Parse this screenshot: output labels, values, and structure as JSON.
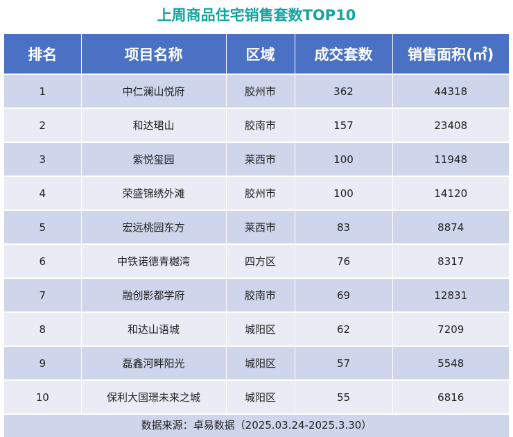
{
  "title": "上周商品住宅销售套数TOP10",
  "table": {
    "headers": [
      "排名",
      "项目名称",
      "区域",
      "成交套数",
      "销售面积(㎡)"
    ],
    "rows": [
      [
        "1",
        "中仁澜山悦府",
        "胶州市",
        "362",
        "44318"
      ],
      [
        "2",
        "和达珺山",
        "胶南市",
        "157",
        "23408"
      ],
      [
        "3",
        "紫悦玺园",
        "莱西市",
        "100",
        "11948"
      ],
      [
        "4",
        "荣盛锦绣外滩",
        "胶州市",
        "100",
        "14120"
      ],
      [
        "5",
        "宏远桃园东方",
        "莱西市",
        "83",
        "8874"
      ],
      [
        "6",
        "中铁诺德青樾湾",
        "四方区",
        "76",
        "8317"
      ],
      [
        "7",
        "融创影都学府",
        "胶南市",
        "69",
        "12831"
      ],
      [
        "8",
        "和达山语城",
        "城阳区",
        "62",
        "7209"
      ],
      [
        "9",
        "磊鑫河畔阳光",
        "城阳区",
        "57",
        "5548"
      ],
      [
        "10",
        "保利大国璟未来之城",
        "城阳区",
        "55",
        "6816"
      ]
    ]
  },
  "footer": "数据来源：卓易数据（2025.03.24-2025.3.30）",
  "colors": {
    "title": "#14a3a0",
    "header_bg": "#4a71c3",
    "row_odd": "#cfd5ea",
    "row_even": "#e9ebf5"
  }
}
